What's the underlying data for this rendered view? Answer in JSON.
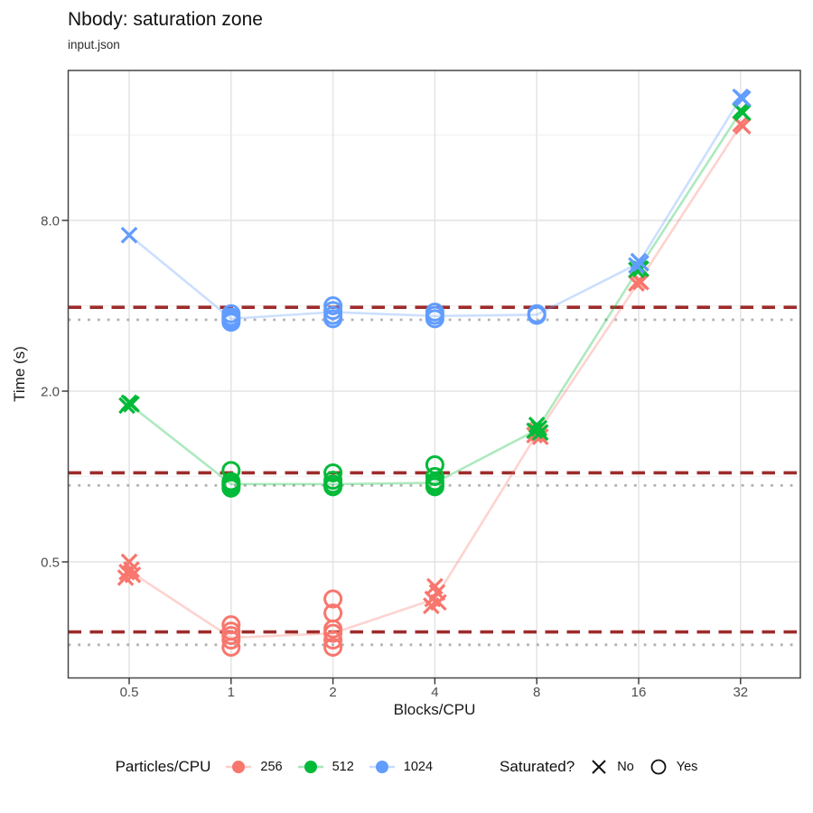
{
  "chart_data": {
    "type": "scatter",
    "title": "Nbody: saturation zone",
    "subtitle": "input.json",
    "xlabel": "Blocks/CPU",
    "ylabel": "Time (s)",
    "x_scale": "log2",
    "y_scale": "log2",
    "x_ticks": [
      0.5,
      1,
      2,
      4,
      8,
      16,
      32
    ],
    "x_tick_labels": [
      "0.5",
      "1",
      "2",
      "4",
      "8",
      "16",
      "32"
    ],
    "y_ticks": [
      8,
      2,
      0.5
    ],
    "y_tick_labels": [
      "8.0",
      "2.0",
      "0.5"
    ],
    "y_minor_gridlines": [
      1,
      4,
      16
    ],
    "x_domain": [
      0.33,
      48
    ],
    "y_domain": [
      0.2,
      27
    ],
    "series": [
      {
        "name": "256",
        "color": "#F8766D",
        "groups": [
          {
            "x": 0.5,
            "saturated": false,
            "values": [
              0.5,
              0.47,
              0.46,
              0.45,
              0.44
            ]
          },
          {
            "x": 1,
            "saturated": true,
            "values": [
              0.3,
              0.285,
              0.275,
              0.265,
              0.25
            ]
          },
          {
            "x": 2,
            "saturated": true,
            "values": [
              0.37,
              0.33,
              0.29,
              0.28,
              0.265,
              0.25
            ]
          },
          {
            "x": 4,
            "saturated": false,
            "values": [
              0.41,
              0.39,
              0.37,
              0.36,
              0.35
            ]
          },
          {
            "x": 8,
            "saturated": false,
            "values": [
              1.45,
              1.42,
              1.4,
              1.38
            ]
          },
          {
            "x": 16,
            "saturated": false,
            "values": [
              4.9,
              4.85,
              4.8
            ]
          },
          {
            "x": 32,
            "saturated": false,
            "values": [
              17.5,
              17.2
            ]
          }
        ],
        "trend": [
          0.465,
          0.27,
          0.28,
          0.37,
          1.41,
          4.85,
          17.3
        ]
      },
      {
        "name": "512",
        "color": "#00BA38",
        "groups": [
          {
            "x": 0.5,
            "saturated": false,
            "values": [
              1.82,
              1.8,
              1.78
            ]
          },
          {
            "x": 1,
            "saturated": true,
            "values": [
              1.05,
              0.96,
              0.94,
              0.93,
              0.91
            ]
          },
          {
            "x": 2,
            "saturated": true,
            "values": [
              1.03,
              0.97,
              0.94,
              0.92
            ]
          },
          {
            "x": 4,
            "saturated": true,
            "values": [
              1.1,
              1.0,
              0.96,
              0.94,
              0.92
            ]
          },
          {
            "x": 8,
            "saturated": false,
            "values": [
              1.52,
              1.48,
              1.45,
              1.43
            ]
          },
          {
            "x": 16,
            "saturated": false,
            "values": [
              5.45,
              5.4,
              5.35
            ]
          },
          {
            "x": 32,
            "saturated": false,
            "values": [
              19.5,
              19.2
            ]
          }
        ],
        "trend": [
          1.8,
          0.94,
          0.94,
          0.95,
          1.46,
          5.4,
          19.3
        ]
      },
      {
        "name": "1024",
        "color": "#619CFF",
        "groups": [
          {
            "x": 0.5,
            "saturated": false,
            "values": [
              7.1
            ]
          },
          {
            "x": 1,
            "saturated": true,
            "values": [
              3.75,
              3.65,
              3.6,
              3.55,
              3.5
            ]
          },
          {
            "x": 2,
            "saturated": true,
            "values": [
              4.0,
              3.85,
              3.7,
              3.6
            ]
          },
          {
            "x": 4,
            "saturated": true,
            "values": [
              3.8,
              3.7,
              3.6
            ]
          },
          {
            "x": 8,
            "saturated": true,
            "values": [
              3.75,
              3.7
            ]
          },
          {
            "x": 16,
            "saturated": false,
            "values": [
              5.75,
              5.65,
              5.55
            ]
          },
          {
            "x": 32,
            "saturated": false,
            "values": [
              21.8,
              21.5
            ]
          }
        ],
        "trend": [
          7.1,
          3.6,
          3.8,
          3.68,
          3.72,
          5.65,
          21.6
        ]
      }
    ],
    "ref_lines": {
      "dashed": {
        "color": "#9E2B2B",
        "style": "dashed",
        "values": [
          3.95,
          1.03,
          0.283
        ]
      },
      "dotted": {
        "color": "#B1B1B1",
        "style": "dotted",
        "values": [
          3.57,
          0.93,
          0.255
        ]
      }
    }
  },
  "legend": {
    "color": {
      "title": "Particles/CPU",
      "entries": [
        {
          "label": "256",
          "color": "#F8766D"
        },
        {
          "label": "512",
          "color": "#00BA38"
        },
        {
          "label": "1024",
          "color": "#619CFF"
        }
      ]
    },
    "shape": {
      "title": "Saturated?",
      "entries": [
        {
          "label": "No",
          "shape": "x"
        },
        {
          "label": "Yes",
          "shape": "circle"
        }
      ]
    }
  }
}
